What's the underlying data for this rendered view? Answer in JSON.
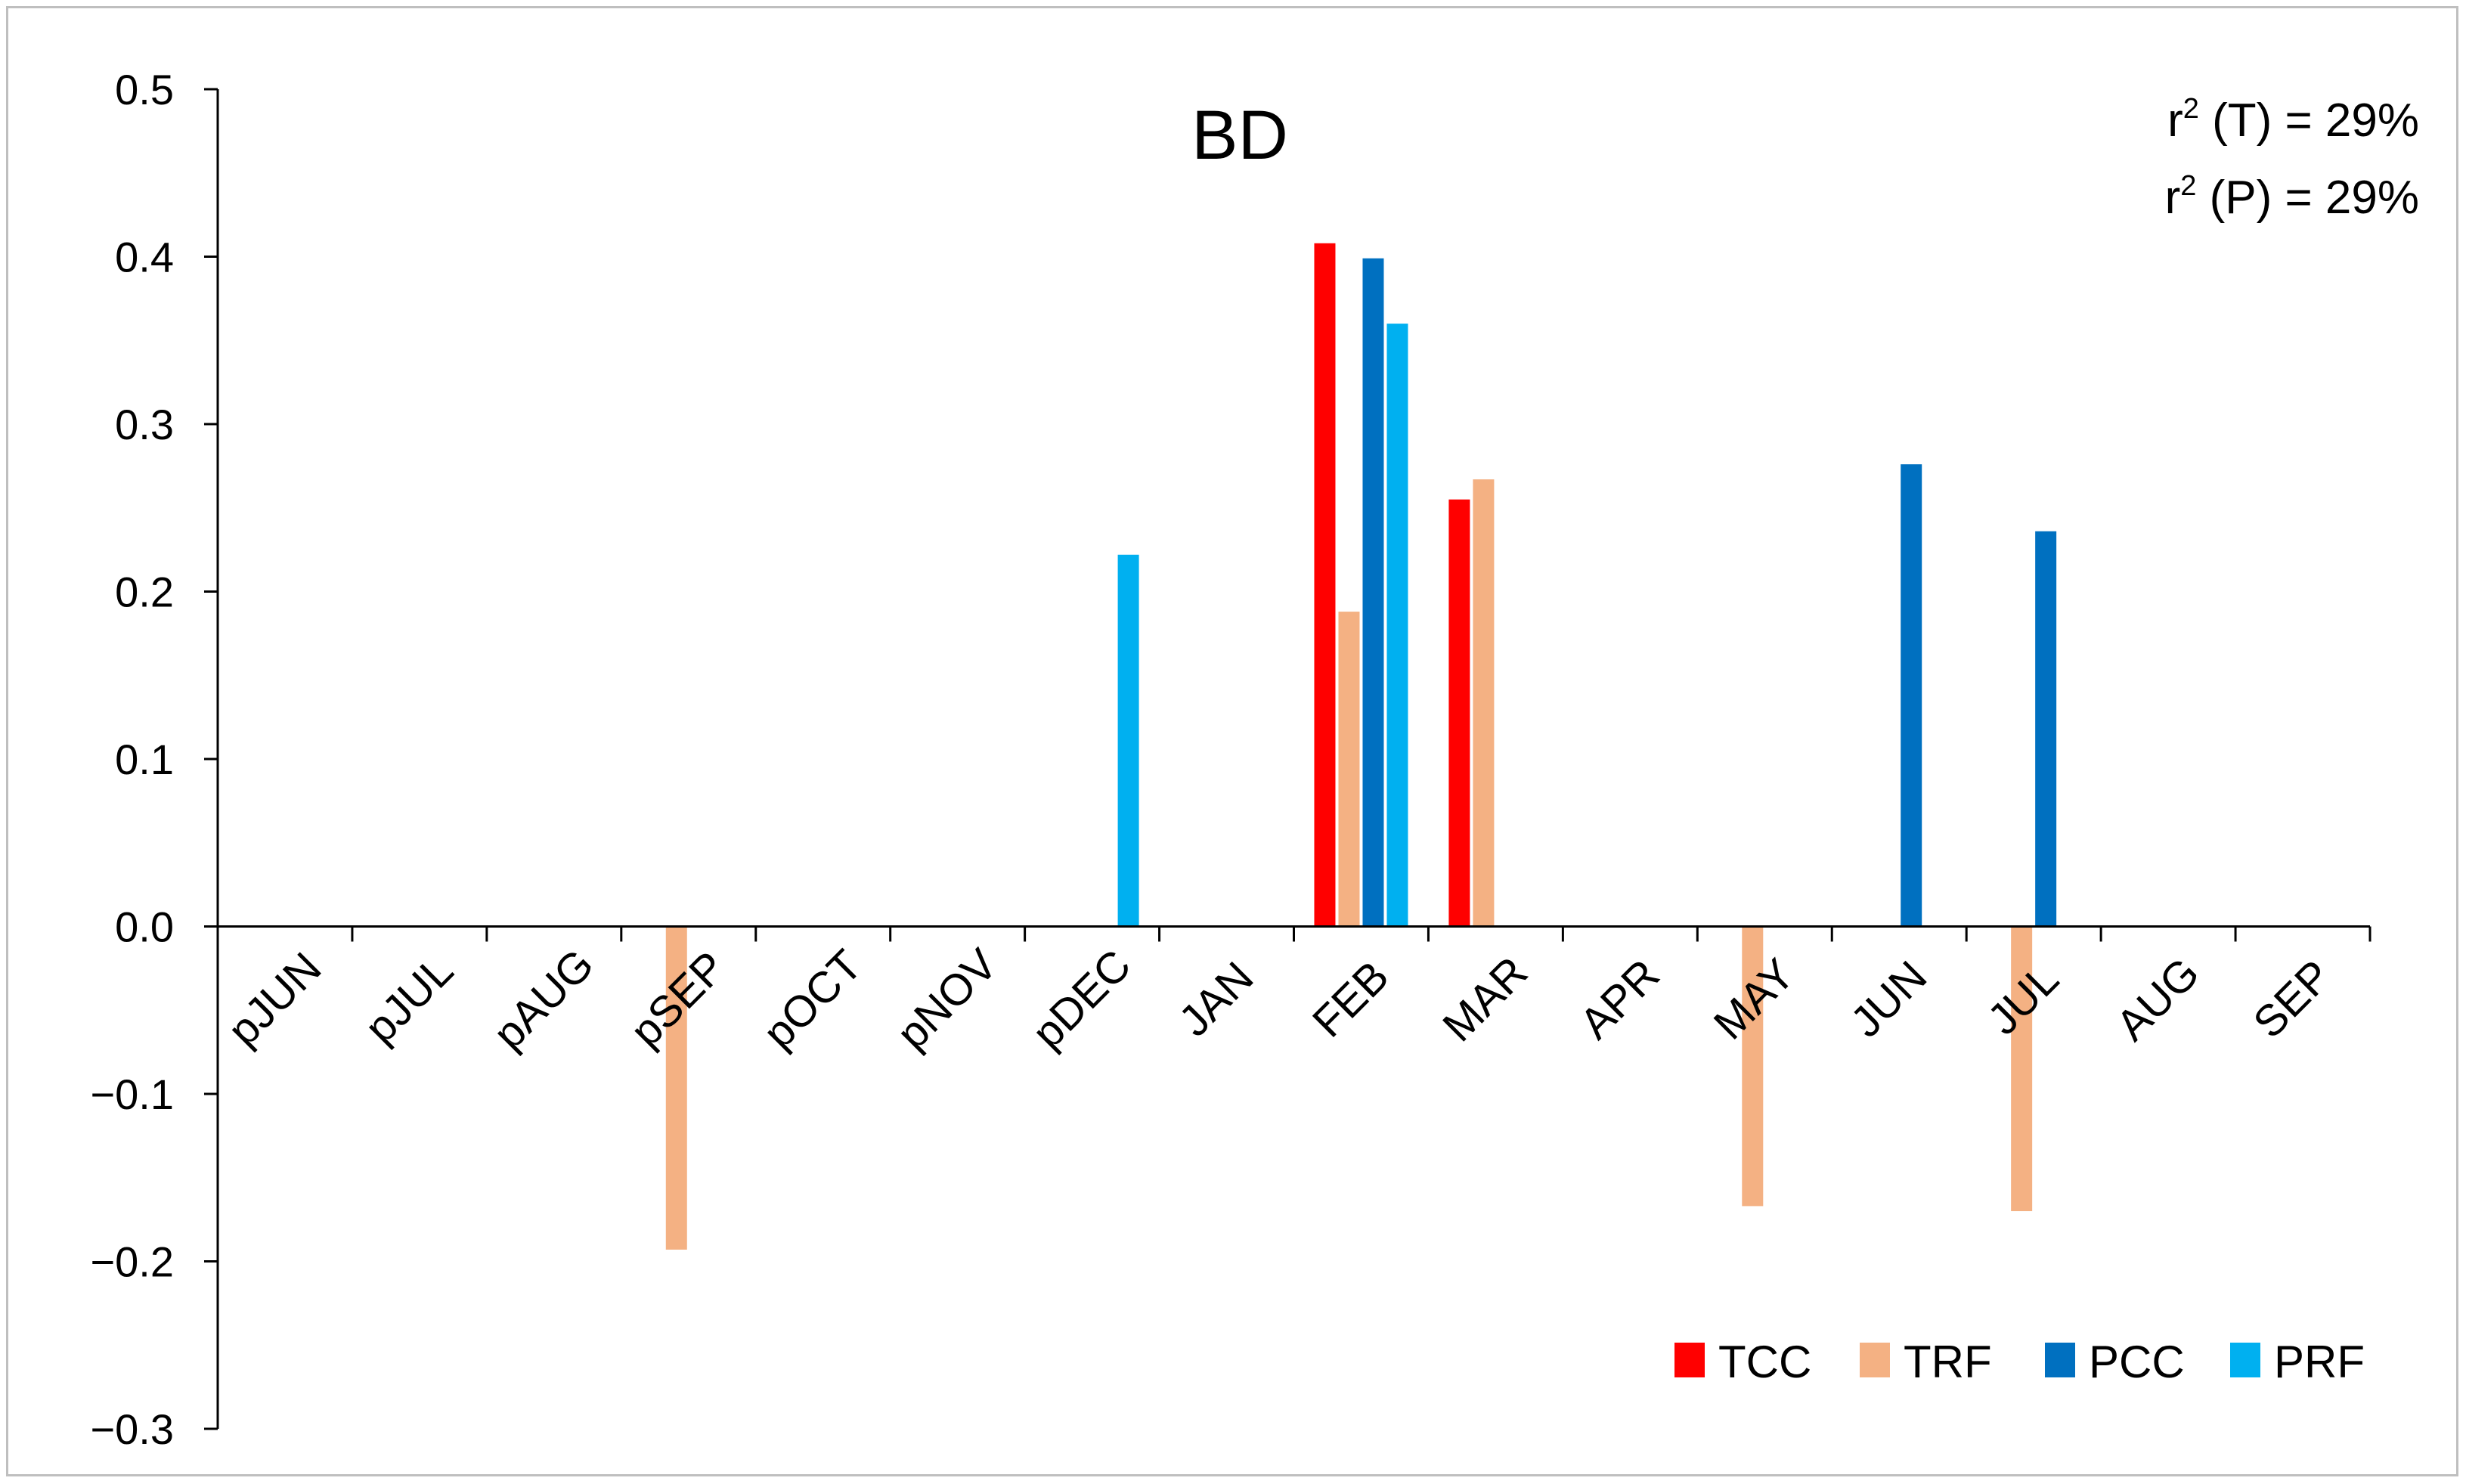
{
  "chart_data": {
    "type": "bar",
    "title": "BD",
    "annotations": [
      {
        "prefix": "r",
        "sup": "2",
        "text": " (T) = 29%"
      },
      {
        "prefix": "r",
        "sup": "2",
        "text": " (P) = 29%"
      }
    ],
    "xlabel": "",
    "ylabel": "",
    "ylim": [
      -0.3,
      0.5
    ],
    "yticks": [
      -0.3,
      -0.2,
      -0.1,
      0.0,
      0.1,
      0.2,
      0.3,
      0.4,
      0.5
    ],
    "ytick_labels": [
      "−0.3",
      "−0.2",
      "−0.1",
      "0.0",
      "0.1",
      "0.2",
      "0.3",
      "0.4",
      "0.5"
    ],
    "categories": [
      "pJUN",
      "pJUL",
      "pAUG",
      "pSEP",
      "pOCT",
      "pNOV",
      "pDEC",
      "JAN",
      "FEB",
      "MAR",
      "APR",
      "MAY",
      "JUN",
      "JUL",
      "AUG",
      "SEP"
    ],
    "series": [
      {
        "name": "TCC",
        "color": "#ff0000",
        "values": [
          0,
          0,
          0,
          0,
          0,
          0,
          0,
          0,
          0.408,
          0.255,
          0,
          0,
          0,
          0,
          0,
          0
        ]
      },
      {
        "name": "TRF",
        "color": "#f4b183",
        "values": [
          0,
          0,
          0,
          -0.193,
          0,
          0,
          0,
          0,
          0.188,
          0.267,
          0,
          -0.167,
          0,
          -0.17,
          0,
          0
        ]
      },
      {
        "name": "PCC",
        "color": "#0070c0",
        "values": [
          0,
          0,
          0,
          0,
          0,
          0,
          0,
          0,
          0.399,
          0,
          0,
          0,
          0.276,
          0.236,
          0,
          0
        ]
      },
      {
        "name": "PRF",
        "color": "#00b0f0",
        "values": [
          0,
          0,
          0,
          0,
          0,
          0,
          0.222,
          0,
          0.36,
          0,
          0,
          0,
          0,
          0,
          0,
          0
        ]
      }
    ],
    "legend_position": "bottom-right",
    "grid": false
  }
}
